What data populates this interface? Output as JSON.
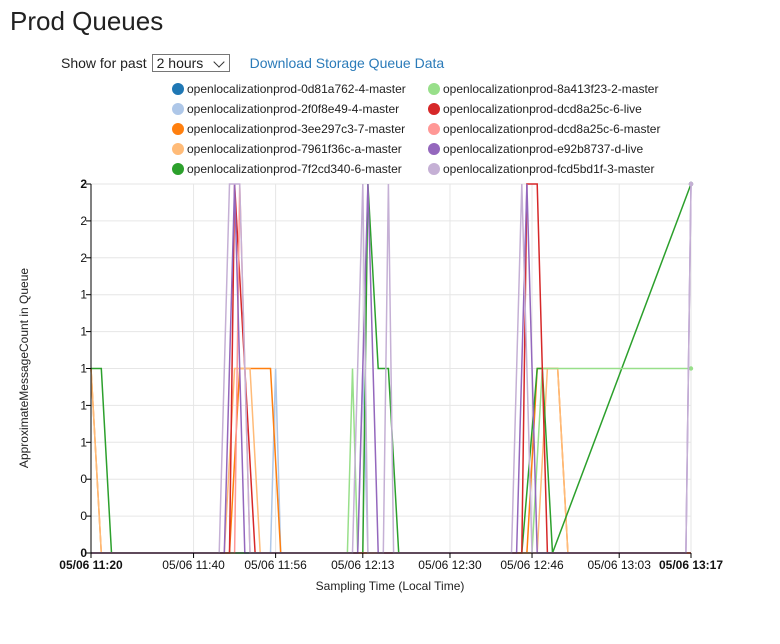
{
  "page": {
    "title": "Prod Queues"
  },
  "controls": {
    "show_for_past_label": "Show for past",
    "range_value": "2 hours",
    "download_link": "Download Storage Queue Data"
  },
  "chart_data": {
    "type": "line",
    "xlabel": "Sampling Time (Local Time)",
    "ylabel": "ApproximateMessageCount in Queue",
    "x_ticks": [
      {
        "label": "05/06 11:20",
        "t": "11:20",
        "bold": true
      },
      {
        "label": "05/06 11:40",
        "t": "11:40",
        "bold": false
      },
      {
        "label": "05/06 11:56",
        "t": "11:56",
        "bold": false
      },
      {
        "label": "05/06 12:13",
        "t": "12:13",
        "bold": false
      },
      {
        "label": "05/06 12:30",
        "t": "12:30",
        "bold": false
      },
      {
        "label": "05/06 12:46",
        "t": "12:46",
        "bold": false
      },
      {
        "label": "05/06 13:03",
        "t": "13:03",
        "bold": false
      },
      {
        "label": "05/06 13:17",
        "t": "13:17",
        "bold": true
      }
    ],
    "x_range": [
      "11:20",
      "13:17"
    ],
    "y_ticks": [
      {
        "label": "0",
        "v": 0,
        "bold": true
      },
      {
        "label": "0",
        "v": 0.2,
        "bold": false
      },
      {
        "label": "0",
        "v": 0.4,
        "bold": false
      },
      {
        "label": "1",
        "v": 0.6,
        "bold": false
      },
      {
        "label": "1",
        "v": 0.8,
        "bold": false
      },
      {
        "label": "1",
        "v": 1.0,
        "bold": false
      },
      {
        "label": "1",
        "v": 1.2,
        "bold": false
      },
      {
        "label": "1",
        "v": 1.4,
        "bold": false
      },
      {
        "label": "2",
        "v": 1.6,
        "bold": false
      },
      {
        "label": "2",
        "v": 1.8,
        "bold": false
      },
      {
        "label": "2",
        "v": 2.0,
        "bold": true
      }
    ],
    "ylim": [
      0,
      2
    ],
    "grid": true,
    "legend_position": "top",
    "series": [
      {
        "name": "openlocalizationprod-0d81a762-4-master",
        "color": "#1f77b4",
        "points": [
          [
            "11:20",
            0
          ],
          [
            "13:17",
            0
          ]
        ]
      },
      {
        "name": "openlocalizationprod-2f0f8e49-4-master",
        "color": "#aec7e8",
        "points": [
          [
            "11:20",
            0
          ],
          [
            "11:55",
            0
          ],
          [
            "11:56",
            1.0
          ],
          [
            "11:57",
            0
          ],
          [
            "12:12",
            0
          ],
          [
            "12:13",
            1.0
          ],
          [
            "12:14",
            0
          ],
          [
            "13:17",
            0
          ]
        ]
      },
      {
        "name": "openlocalizationprod-3ee297c3-7-master",
        "color": "#ff7f0e",
        "points": [
          [
            "11:20",
            1.0
          ],
          [
            "11:22",
            0
          ],
          [
            "11:47",
            0
          ],
          [
            "11:49",
            1.0
          ],
          [
            "11:55",
            1.0
          ],
          [
            "11:57",
            0
          ],
          [
            "12:45",
            0
          ],
          [
            "12:47",
            1.0
          ],
          [
            "12:51",
            1.0
          ],
          [
            "12:53",
            0
          ],
          [
            "13:17",
            0
          ]
        ]
      },
      {
        "name": "openlocalizationprod-7961f36c-a-master",
        "color": "#ffbb78",
        "points": [
          [
            "11:20",
            1.0
          ],
          [
            "11:22",
            0
          ],
          [
            "11:46",
            0
          ],
          [
            "11:48",
            1.0
          ],
          [
            "11:51",
            1.0
          ],
          [
            "11:53",
            0
          ],
          [
            "12:47",
            0
          ],
          [
            "12:49",
            1.0
          ],
          [
            "12:51",
            1.0
          ],
          [
            "12:53",
            0
          ],
          [
            "13:17",
            0
          ]
        ]
      },
      {
        "name": "openlocalizationprod-7f2cd340-6-master",
        "color": "#2ca02c",
        "points": [
          [
            "11:20",
            1.0
          ],
          [
            "11:22",
            1.0
          ],
          [
            "11:24",
            0
          ],
          [
            "12:13",
            0
          ],
          [
            "12:14",
            2.0
          ],
          [
            "12:16",
            1.0
          ],
          [
            "12:18",
            1.0
          ],
          [
            "12:20",
            0
          ],
          [
            "12:44",
            0
          ],
          [
            "12:47",
            1.0
          ],
          [
            "12:48",
            1.0
          ],
          [
            "12:50",
            0
          ],
          [
            "13:17",
            2.0
          ]
        ]
      },
      {
        "name": "openlocalizationprod-8a413f23-2-master",
        "color": "#98df8a",
        "points": [
          [
            "11:20",
            0
          ],
          [
            "12:10",
            0
          ],
          [
            "12:11",
            1.0
          ],
          [
            "12:12",
            0
          ],
          [
            "12:46",
            0
          ],
          [
            "12:48",
            1.0
          ],
          [
            "13:17",
            1.0
          ]
        ]
      },
      {
        "name": "openlocalizationprod-dcd8a25c-6-live",
        "color": "#d62728",
        "points": [
          [
            "11:20",
            0
          ],
          [
            "11:47",
            0
          ],
          [
            "11:48",
            2.0
          ],
          [
            "11:50",
            1.0
          ],
          [
            "11:52",
            0
          ],
          [
            "12:44",
            0
          ],
          [
            "12:45",
            2.0
          ],
          [
            "12:47",
            2.0
          ],
          [
            "12:49",
            0
          ],
          [
            "13:17",
            0
          ]
        ]
      },
      {
        "name": "openlocalizationprod-dcd8a25c-6-master",
        "color": "#ff9896",
        "points": [
          [
            "11:20",
            0
          ],
          [
            "11:48",
            0
          ],
          [
            "11:49",
            2.0
          ],
          [
            "11:51",
            0
          ],
          [
            "13:17",
            0
          ]
        ]
      },
      {
        "name": "openlocalizationprod-e92b8737-d-live",
        "color": "#9467bd",
        "points": [
          [
            "11:20",
            0
          ],
          [
            "11:46",
            0
          ],
          [
            "11:48",
            2.0
          ],
          [
            "11:50",
            0
          ],
          [
            "12:12",
            0
          ],
          [
            "12:14",
            2.0
          ],
          [
            "12:16",
            0
          ],
          [
            "12:43",
            0
          ],
          [
            "12:45",
            2.0
          ],
          [
            "12:47",
            0
          ],
          [
            "13:16",
            0
          ],
          [
            "13:17",
            2.0
          ]
        ]
      },
      {
        "name": "openlocalizationprod-fcd5bd1f-3-master",
        "color": "#c5b0d5",
        "points": [
          [
            "11:20",
            0
          ],
          [
            "11:45",
            0
          ],
          [
            "11:47",
            2.0
          ],
          [
            "11:49",
            2.0
          ],
          [
            "11:51",
            0
          ],
          [
            "12:11",
            0
          ],
          [
            "12:13",
            2.0
          ],
          [
            "12:14",
            0
          ],
          [
            "12:17",
            0
          ],
          [
            "12:18",
            2.0
          ],
          [
            "12:19",
            0
          ],
          [
            "12:42",
            0
          ],
          [
            "12:44",
            2.0
          ],
          [
            "12:46",
            0
          ],
          [
            "13:16",
            0
          ],
          [
            "13:17",
            2.0
          ]
        ]
      }
    ]
  }
}
